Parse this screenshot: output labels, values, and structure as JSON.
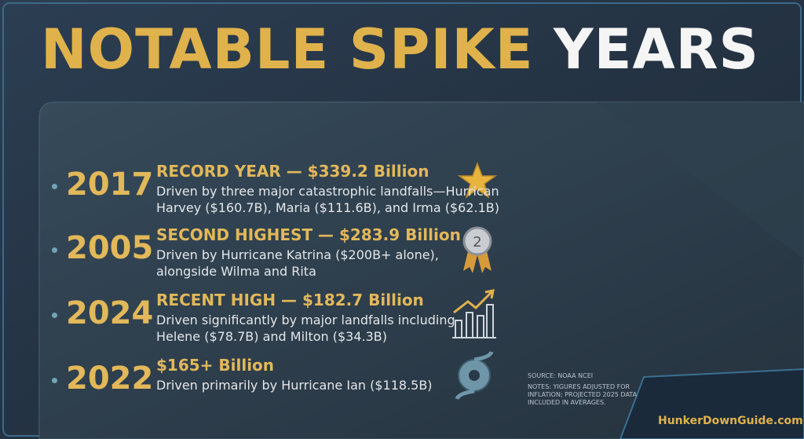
{
  "header": {
    "title_highlight": "NOTABLE SPIKE",
    "title_rest": "YEARS"
  },
  "items": [
    {
      "year": "2017",
      "heading": "RECORD YEAR — $339.2 Billion",
      "lines": [
        "Driven by three major catastrophic landfalls—Hurrican",
        "Harvey ($160.7B), Maria ($111.6B),  and Irma ($62.1B)"
      ]
    },
    {
      "year": "2005",
      "heading": "SECOND HIGHEST — $283.9 Billion",
      "lines": [
        "Driven by Hurricane Katrina ($200B+ alone),",
        "alongside Wilma and Rita"
      ]
    },
    {
      "year": "2024",
      "heading": "RECENT HIGH — $182.7 Billion",
      "lines": [
        "Driven significantly by major landfalls including",
        "Helene ($78.7B) and Milton ($34.3B)"
      ]
    },
    {
      "year": "2022",
      "heading": "$165+ Billion",
      "lines": [
        "Driven primarily by Hurricane Ian ($118.5B)"
      ]
    }
  ],
  "footer": {
    "source": "SOURCE: NOAA NCEI",
    "notes": [
      "NOTES: YIGURES ADJUSTED FOR",
      "INFLATION; PROJECTED 2025 DATA",
      "INCLUDED IN AVERAGES."
    ],
    "brand": "HunkerDownGuide.com"
  }
}
